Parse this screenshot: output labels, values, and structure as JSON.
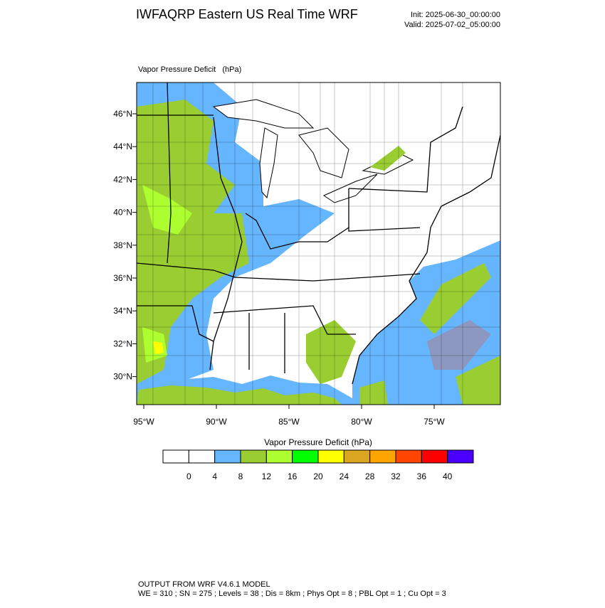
{
  "header": {
    "title": "IWFAQRP Eastern US Real Time WRF",
    "init": "Init: 2025-06-30_00:00:00",
    "valid": "Valid: 2025-07-02_05:00:00"
  },
  "map": {
    "label": "Vapor Pressure Deficit   (hPa)",
    "lat_labels": [
      "46°N",
      "44°N",
      "42°N",
      "40°N",
      "38°N",
      "36°N",
      "34°N",
      "32°N",
      "30°N"
    ],
    "lon_labels": [
      "95°W",
      "90°W",
      "85°W",
      "80°W",
      "75°W"
    ]
  },
  "colorbar": {
    "title": "Vapor Pressure Deficit  (hPa)",
    "colors": [
      "#ffffff",
      "#ffffff",
      "#66b5ff",
      "#9acd32",
      "#adff2f",
      "#00ff00",
      "#ffff00",
      "#daa520",
      "#ffa500",
      "#ff4500",
      "#ff0000",
      "#4b00ff"
    ],
    "labels": [
      0,
      4,
      8,
      12,
      16,
      20,
      24,
      28,
      32,
      36,
      40
    ]
  },
  "footer": {
    "line1": "OUTPUT FROM WRF V4.6.1 MODEL",
    "line2": "WE = 310 ; SN = 275 ; Levels = 38 ; Dis = 8km ; Phys Opt = 8 ; PBL Opt = 1 ; Cu Opt = 3"
  }
}
